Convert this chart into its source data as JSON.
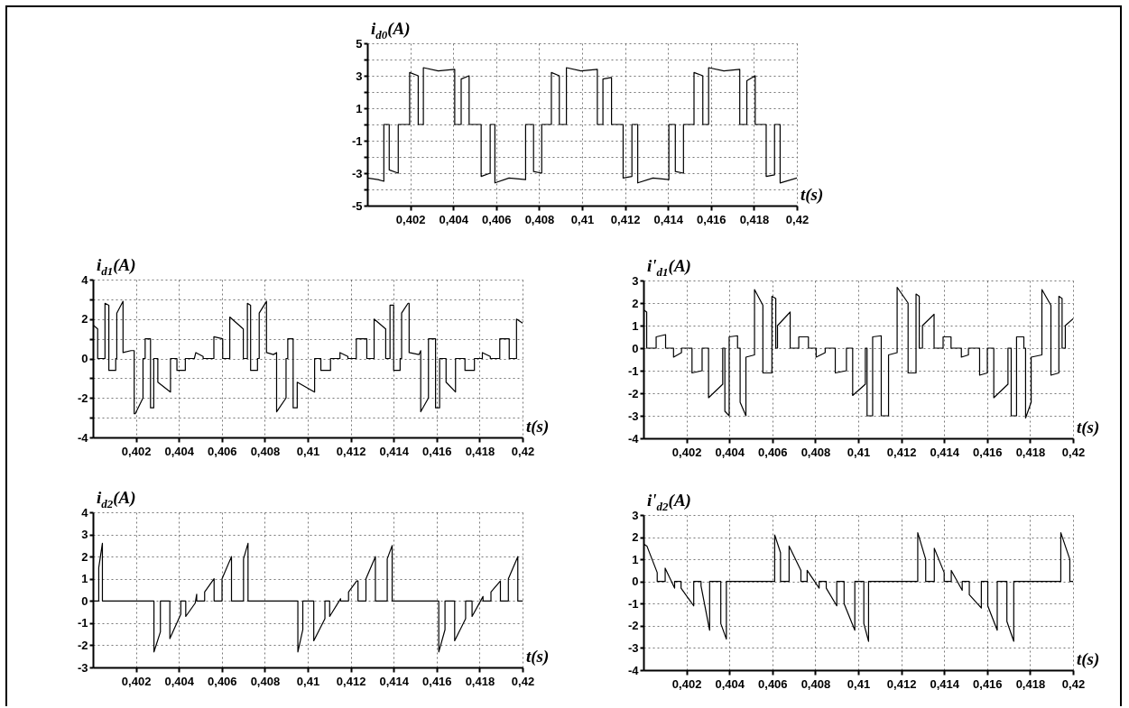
{
  "chart_data": [
    {
      "type": "line",
      "ylabel": "i$_{d0}$(A)",
      "xlabel": "t(s)",
      "xlim": [
        0.4,
        0.42
      ],
      "ylim": [
        -5,
        5
      ],
      "xticks": [
        {
          "value": 0.402,
          "label": "0,402"
        },
        {
          "value": 0.404,
          "label": "0,404"
        },
        {
          "value": 0.406,
          "label": "0,406"
        },
        {
          "value": 0.408,
          "label": "0,408"
        },
        {
          "value": 0.41,
          "label": "0,41"
        },
        {
          "value": 0.412,
          "label": "0,412"
        },
        {
          "value": 0.414,
          "label": "0,414"
        },
        {
          "value": 0.416,
          "label": "0,416"
        },
        {
          "value": 0.418,
          "label": "0,418"
        },
        {
          "value": 0.42,
          "label": "0,42"
        }
      ],
      "yticks": [
        5,
        {
          "value": 4,
          "label": null
        },
        3,
        {
          "value": 2,
          "label": null
        },
        1,
        {
          "value": 0,
          "label": null
        },
        -1,
        {
          "value": -2,
          "label": null
        },
        -3,
        {
          "value": -4,
          "label": null
        },
        -5
      ],
      "grid": true,
      "line_style": "solid",
      "series": [
        {
          "color": "#000000",
          "x": [
            0.4,
            0.4005,
            0.40077,
            0.40077,
            0.40102,
            0.40102,
            0.40144,
            0.40144,
            0.40197,
            0.40197,
            0.40237,
            0.40237,
            0.40261,
            0.40261,
            0.4033,
            0.40407,
            0.40407,
            0.40437,
            0.40437,
            0.40474,
            0.40474,
            0.4053,
            0.4053,
            0.40572,
            0.40572,
            0.40594,
            0.40594,
            0.4066,
            0.40737,
            0.40737,
            0.40774,
            0.40774,
            0.40812,
            0.40812,
            0.40857,
            0.40857,
            0.40894,
            0.40894,
            0.40927,
            0.40927,
            0.40995,
            0.41071,
            0.41071,
            0.41097,
            0.41097,
            0.41137,
            0.41137,
            0.41191,
            0.41191,
            0.41232,
            0.41232,
            0.41259,
            0.41259,
            0.4133,
            0.41404,
            0.41404,
            0.41434,
            0.41434,
            0.41472,
            0.41472,
            0.41521,
            0.41521,
            0.41562,
            0.41562,
            0.41589,
            0.41589,
            0.4166,
            0.41734,
            0.41734,
            0.41767,
            0.41767,
            0.41806,
            0.41806,
            0.41857,
            0.41857,
            0.41896,
            0.41896,
            0.41922,
            0.41922,
            0.42
          ],
          "values": [
            -3.3,
            -3.4,
            -3.5,
            0,
            0,
            -2.8,
            -3,
            0,
            0,
            3.2,
            3,
            0,
            0,
            3.5,
            3.3,
            3.4,
            0,
            0,
            2.8,
            3,
            0,
            0,
            -3.2,
            -3,
            0,
            0,
            -3.6,
            -3.3,
            -3.4,
            0,
            0,
            -2.9,
            -3,
            0,
            0,
            3.2,
            3,
            0,
            0,
            3.5,
            3.3,
            3.4,
            0,
            0,
            2.8,
            2.9,
            0,
            0,
            -3.3,
            -3.2,
            0,
            0,
            -3.6,
            -3.3,
            -3.4,
            0,
            0,
            -2.9,
            -3,
            0,
            0,
            3.2,
            3,
            0,
            0,
            3.5,
            3.3,
            3.4,
            0,
            0,
            2.7,
            3,
            0,
            0,
            -3.2,
            -3.1,
            0,
            0,
            -3.6,
            -3.3
          ]
        }
      ]
    },
    {
      "type": "line",
      "ylabel": "i$_{d1}$(A)",
      "xlabel": "t(s)",
      "xlim": [
        0.4,
        0.42
      ],
      "ylim": [
        -4,
        4
      ],
      "xticks": [
        {
          "value": 0.402,
          "label": "0,402"
        },
        {
          "value": 0.404,
          "label": "0,404"
        },
        {
          "value": 0.406,
          "label": "0,406"
        },
        {
          "value": 0.408,
          "label": "0,408"
        },
        {
          "value": 0.41,
          "label": "0,41"
        },
        {
          "value": 0.412,
          "label": "0,412"
        },
        {
          "value": 0.414,
          "label": "0,414"
        },
        {
          "value": 0.416,
          "label": "0,416"
        },
        {
          "value": 0.418,
          "label": "0,418"
        },
        {
          "value": 0.42,
          "label": "0,42"
        }
      ],
      "yticks": [
        4,
        {
          "value": 3,
          "label": null
        },
        2,
        {
          "value": 1,
          "label": null
        },
        0,
        {
          "value": -1,
          "label": null
        },
        -2,
        {
          "value": -3,
          "label": null
        },
        -4
      ],
      "grid": true,
      "line_style": "solid",
      "series": [
        {
          "color": "#000000",
          "x": [
            0.4,
            0.40022,
            0.40022,
            0.40056,
            0.40056,
            0.40074,
            0.40074,
            0.40106,
            0.40106,
            0.40111,
            0.40111,
            0.4014,
            0.4014,
            0.40177,
            0.40192,
            0.40192,
            0.40197,
            0.40233,
            0.40233,
            0.40243,
            0.40243,
            0.40268,
            0.40268,
            0.40283,
            0.40283,
            0.40302,
            0.40302,
            0.40361,
            0.40361,
            0.40391,
            0.40391,
            0.4043,
            0.4043,
            0.40472,
            0.40479,
            0.40513,
            0.40513,
            0.40563,
            0.40563,
            0.40604,
            0.40604,
            0.40637,
            0.40637,
            0.407,
            0.407,
            0.40719,
            0.40719,
            0.40734,
            0.40734,
            0.40766,
            0.40766,
            0.40774,
            0.40774,
            0.40808,
            0.40808,
            0.4084,
            0.40855,
            0.40855,
            0.40899,
            0.40899,
            0.40907,
            0.40907,
            0.40932,
            0.40932,
            0.40951,
            0.40951,
            0.41032,
            0.41032,
            0.41061,
            0.41061,
            0.41106,
            0.41106,
            0.4115,
            0.4115,
            0.41187,
            0.41187,
            0.41226,
            0.41226,
            0.41275,
            0.41275,
            0.41309,
            0.41309,
            0.41363,
            0.41363,
            0.41383,
            0.41383,
            0.414,
            0.414,
            0.4143,
            0.4143,
            0.41437,
            0.41437,
            0.41467,
            0.41472,
            0.41472,
            0.41518,
            0.41526,
            0.41526,
            0.41562,
            0.41562,
            0.41562,
            0.41595,
            0.41595,
            0.41614,
            0.41614,
            0.41644,
            0.41644,
            0.41688,
            0.41688,
            0.41732,
            0.41732,
            0.41776,
            0.41776,
            0.41813,
            0.41813,
            0.4185,
            0.4185,
            0.41894,
            0.41894,
            0.41938,
            0.41938,
            0.41972,
            0.41972,
            0.42
          ],
          "values": [
            1.7,
            1.5,
            0,
            0,
            2.8,
            2.7,
            -0.6,
            -0.6,
            0,
            0,
            2.3,
            2.9,
            0.3,
            0.4,
            0.4,
            -2.8,
            -2.8,
            -2,
            0,
            0,
            1,
            1,
            -2.5,
            -2.5,
            0,
            0,
            -1.2,
            -1.7,
            0,
            0,
            -0.6,
            -0.6,
            0,
            0,
            0.3,
            0.1,
            0,
            0,
            1.1,
            1,
            0,
            0,
            2.1,
            1.5,
            0,
            0,
            2.8,
            2.7,
            -0.6,
            -0.6,
            0,
            0,
            2.3,
            2.9,
            0.3,
            0.2,
            0.3,
            -2.7,
            -2,
            0,
            0,
            1,
            1,
            -2.5,
            -2.5,
            -1.2,
            -1.7,
            0,
            0,
            -0.6,
            -0.6,
            0,
            0,
            0.3,
            0.1,
            0,
            0,
            1,
            1,
            0,
            0,
            2,
            1.5,
            0,
            0,
            2.7,
            2.7,
            -0.6,
            -0.6,
            0,
            0,
            2.3,
            2.8,
            2.8,
            0.3,
            0.2,
            0.4,
            -2.7,
            -2,
            0,
            1,
            1,
            -2.5,
            -2.5,
            0,
            0,
            -1.2,
            -1.7,
            0,
            0,
            -0.6,
            -0.6,
            0,
            0,
            0.3,
            0.1,
            0,
            0,
            1,
            1,
            0,
            0,
            2,
            1.8
          ]
        }
      ]
    },
    {
      "type": "line",
      "ylabel": "i'$_{d1}$(A)",
      "xlabel": "t(s)",
      "xlim": [
        0.4,
        0.42
      ],
      "ylim": [
        -4,
        3
      ],
      "xticks": [
        {
          "value": 0.402,
          "label": "0,402"
        },
        {
          "value": 0.404,
          "label": "0,404"
        },
        {
          "value": 0.406,
          "label": "0,406"
        },
        {
          "value": 0.408,
          "label": "0,408"
        },
        {
          "value": 0.41,
          "label": "0,41"
        },
        {
          "value": 0.412,
          "label": "0,412"
        },
        {
          "value": 0.414,
          "label": "0,414"
        },
        {
          "value": 0.416,
          "label": "0,416"
        },
        {
          "value": 0.418,
          "label": "0,418"
        },
        {
          "value": 0.42,
          "label": "0,42"
        }
      ],
      "yticks": [
        3,
        2,
        1,
        0,
        -1,
        -2,
        -3,
        -4
      ],
      "grid": true,
      "line_style": "solid",
      "series": [
        {
          "color": "#000000",
          "x": [
            0.4,
            0.4,
            0.40015,
            0.40015,
            0.40059,
            0.40059,
            0.40103,
            0.40103,
            0.4014,
            0.4014,
            0.40177,
            0.40177,
            0.40226,
            0.40226,
            0.40273,
            0.40273,
            0.40303,
            0.40303,
            0.40369,
            0.40369,
            0.40379,
            0.40379,
            0.40399,
            0.40399,
            0.40438,
            0.40438,
            0.4045,
            0.4045,
            0.40477,
            0.40477,
            0.40517,
            0.40517,
            0.40556,
            0.40556,
            0.40598,
            0.40598,
            0.40616,
            0.40616,
            0.40624,
            0.40624,
            0.40683,
            0.40683,
            0.40723,
            0.40723,
            0.40768,
            0.40768,
            0.40804,
            0.40804,
            0.40846,
            0.40846,
            0.40893,
            0.40893,
            0.40945,
            0.40945,
            0.40974,
            0.40974,
            0.41033,
            0.41033,
            0.41041,
            0.41041,
            0.41067,
            0.41067,
            0.41107,
            0.41107,
            0.41141,
            0.41141,
            0.41181,
            0.41181,
            0.41232,
            0.41232,
            0.41269,
            0.41269,
            0.41284,
            0.41284,
            0.41299,
            0.41299,
            0.41353,
            0.41353,
            0.41395,
            0.41395,
            0.41432,
            0.41432,
            0.4148,
            0.4148,
            0.41513,
            0.41513,
            0.41565,
            0.41565,
            0.41601,
            0.41601,
            0.41631,
            0.41631,
            0.41697,
            0.41697,
            0.41712,
            0.41712,
            0.41737,
            0.41737,
            0.41771,
            0.41771,
            0.41779,
            0.41779,
            0.41805,
            0.41805,
            0.41855,
            0.41855,
            0.41897,
            0.41897,
            0.41934,
            0.41934,
            0.41949,
            0.41949,
            0.41964,
            0.41964,
            0.42
          ],
          "values": [
            0,
            1.7,
            1.6,
            0,
            0,
            0.5,
            0.6,
            0,
            0,
            -0.4,
            -0.2,
            0,
            0,
            -1.1,
            -1,
            0,
            0,
            -2.2,
            -1.6,
            0,
            0,
            -2.8,
            -3,
            0.5,
            0.55,
            0,
            0,
            -2.4,
            -3,
            -0.4,
            -0.3,
            2.6,
            1.9,
            -1.1,
            -1.1,
            2.3,
            2.2,
            0,
            0,
            1,
            1.6,
            0,
            0,
            0.5,
            0.5,
            0,
            0,
            -0.4,
            -0.2,
            0,
            0,
            -1.1,
            -1,
            0,
            0,
            -2.1,
            -1.6,
            0,
            0,
            -3,
            -3,
            0.5,
            0.55,
            -3,
            -3,
            -0.3,
            -0.2,
            2.7,
            2,
            -1.1,
            -1.1,
            2.4,
            2.3,
            0,
            0,
            1,
            1.5,
            0,
            0,
            0.5,
            0.5,
            0,
            0,
            -0.4,
            -0.3,
            0,
            0,
            -1.2,
            -1.1,
            0,
            0,
            -2.2,
            -1.6,
            0,
            0,
            -3,
            -3,
            0.5,
            0.5,
            0,
            0,
            -3.1,
            -2.4,
            -0.4,
            -0.3,
            2.6,
            1.9,
            -1.2,
            -1.1,
            2.3,
            2.2,
            0,
            0,
            1,
            1.3
          ]
        }
      ]
    },
    {
      "type": "line",
      "ylabel": "i$_{d2}$(A)",
      "xlabel": "t(s)",
      "xlim": [
        0.4,
        0.42
      ],
      "ylim": [
        -3,
        4
      ],
      "xticks": [
        {
          "value": 0.402,
          "label": "0,402"
        },
        {
          "value": 0.404,
          "label": "0,404"
        },
        {
          "value": 0.406,
          "label": "0,406"
        },
        {
          "value": 0.408,
          "label": "0,408"
        },
        {
          "value": 0.41,
          "label": "0,41"
        },
        {
          "value": 0.412,
          "label": "0,412"
        },
        {
          "value": 0.414,
          "label": "0,414"
        },
        {
          "value": 0.416,
          "label": "0,416"
        },
        {
          "value": 0.418,
          "label": "0,418"
        },
        {
          "value": 0.42,
          "label": "0,42"
        }
      ],
      "yticks": [
        4,
        3,
        2,
        1,
        0,
        -1,
        -2,
        -3
      ],
      "grid": true,
      "line_style": "solid",
      "series": [
        {
          "color": "#000000",
          "x": [
            0.4,
            0.40027,
            0.40027,
            0.40044,
            0.40044,
            0.40284,
            0.40284,
            0.40314,
            0.40314,
            0.40358,
            0.40358,
            0.40409,
            0.40409,
            0.40432,
            0.40432,
            0.40476,
            0.40483,
            0.40483,
            0.4052,
            0.4052,
            0.40564,
            0.40564,
            0.40601,
            0.40601,
            0.40645,
            0.40645,
            0.40701,
            0.40701,
            0.40722,
            0.40722,
            0.40954,
            0.40954,
            0.40977,
            0.40977,
            0.41028,
            0.41028,
            0.4108,
            0.4108,
            0.41102,
            0.41102,
            0.41153,
            0.41153,
            0.4119,
            0.4119,
            0.41228,
            0.41234,
            0.41234,
            0.41271,
            0.41271,
            0.41315,
            0.41315,
            0.4137,
            0.4137,
            0.41393,
            0.41393,
            0.4161,
            0.4161,
            0.41639,
            0.41639,
            0.41684,
            0.41684,
            0.41735,
            0.41735,
            0.41765,
            0.41765,
            0.41816,
            0.41816,
            0.41853,
            0.41853,
            0.41897,
            0.41897,
            0.41934,
            0.41934,
            0.41978,
            0.41978,
            0.42
          ],
          "values": [
            0,
            0,
            1.5,
            2.6,
            0,
            0,
            -2.3,
            -1.4,
            0,
            0,
            -1.7,
            -0.6,
            0,
            0,
            -0.7,
            -0.1,
            0.3,
            0,
            0,
            0.4,
            1,
            0,
            0,
            1,
            2,
            0,
            0,
            1.9,
            2.6,
            0,
            0,
            -2.3,
            -1.3,
            0,
            0,
            -1.8,
            -0.8,
            0,
            0,
            -0.7,
            0.1,
            0,
            0,
            0.4,
            0.9,
            0.9,
            0,
            0,
            1,
            2,
            0,
            0,
            1.9,
            2.5,
            0,
            0,
            -2.3,
            -1.3,
            0,
            0,
            -1.8,
            -0.8,
            0,
            0,
            -0.7,
            0.2,
            0,
            0,
            0.4,
            0.9,
            0,
            0,
            1,
            2,
            0,
            0
          ]
        }
      ]
    },
    {
      "type": "line",
      "ylabel": "i'$_{d2}$(A)",
      "xlabel": "t(s)",
      "xlim": [
        0.4,
        0.42
      ],
      "ylim": [
        -4,
        3
      ],
      "xticks": [
        {
          "value": 0.402,
          "label": "0,402"
        },
        {
          "value": 0.404,
          "label": "0,404"
        },
        {
          "value": 0.406,
          "label": "0,406"
        },
        {
          "value": 0.408,
          "label": "0,408"
        },
        {
          "value": 0.41,
          "label": "0,41"
        },
        {
          "value": 0.412,
          "label": "0,412"
        },
        {
          "value": 0.414,
          "label": "0,414"
        },
        {
          "value": 0.416,
          "label": "0,416"
        },
        {
          "value": 0.418,
          "label": "0,418"
        },
        {
          "value": 0.42,
          "label": "0,42"
        }
      ],
      "yticks": [
        3,
        2,
        1,
        0,
        -1,
        -2,
        -3,
        -4
      ],
      "grid": true,
      "line_style": "solid",
      "series": [
        {
          "color": "#000000",
          "x": [
            0.4,
            0.4,
            0.40016,
            0.40064,
            0.40064,
            0.40101,
            0.40101,
            0.40145,
            0.40145,
            0.40175,
            0.40175,
            0.40234,
            0.40234,
            0.40268,
            0.40268,
            0.40308,
            0.40308,
            0.4036,
            0.4036,
            0.40386,
            0.40386,
            0.40611,
            0.40611,
            0.40638,
            0.40638,
            0.40678,
            0.40678,
            0.40733,
            0.40733,
            0.40762,
            0.40762,
            0.40818,
            0.40818,
            0.40851,
            0.40851,
            0.409,
            0.409,
            0.40934,
            0.40934,
            0.40984,
            0.40984,
            0.41026,
            0.41026,
            0.41048,
            0.41048,
            0.41277,
            0.41277,
            0.41314,
            0.41314,
            0.41354,
            0.41354,
            0.414,
            0.414,
            0.41433,
            0.41433,
            0.41484,
            0.41484,
            0.41517,
            0.41517,
            0.41573,
            0.41573,
            0.41603,
            0.41603,
            0.41647,
            0.41647,
            0.41692,
            0.41692,
            0.41724,
            0.41724,
            0.41943,
            0.41943,
            0.41985,
            0.41985,
            0.42
          ],
          "values": [
            0,
            1.7,
            1.6,
            0.4,
            0,
            0,
            0.6,
            -0.3,
            0,
            0,
            -0.3,
            -1.1,
            0,
            0,
            -0.2,
            -2.2,
            0,
            0,
            -1.9,
            -2.6,
            0,
            0,
            2.1,
            1.3,
            0,
            0,
            1.6,
            0.5,
            0,
            0,
            0.5,
            -0.3,
            0,
            0,
            -0.3,
            -1.1,
            0,
            0,
            -1,
            -2.2,
            0,
            0,
            -1.9,
            -2.7,
            0,
            0,
            2.2,
            1,
            0,
            0,
            1.5,
            0.4,
            0,
            0,
            0.5,
            -0.4,
            0,
            0,
            -0.6,
            -1.2,
            0,
            0,
            -1.1,
            -2.2,
            0,
            0,
            -1.8,
            -2.7,
            0,
            0,
            2.2,
            1,
            0,
            0
          ]
        }
      ]
    }
  ]
}
